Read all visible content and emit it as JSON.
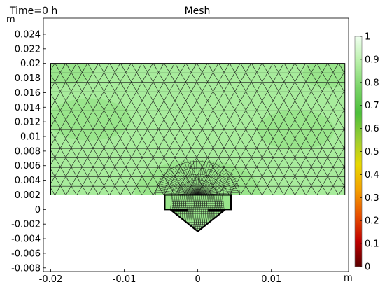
{
  "plot": {
    "time_label": "Time=0 h",
    "title": "Mesh",
    "y_unit": "m",
    "x_unit": "m"
  },
  "colors": {
    "mesh_fill": "#a8ec9c",
    "mesh_fill_dark": "#8de07e",
    "mesh_line": "#1a1a1a",
    "frame": "#000000"
  },
  "chart_data": {
    "type": "mesh",
    "x_ticks": [
      {
        "value": -0.02,
        "label": "-0.02"
      },
      {
        "value": -0.01,
        "label": "-0.01"
      },
      {
        "value": 0,
        "label": "0"
      },
      {
        "value": 0.01,
        "label": "0.01"
      }
    ],
    "y_ticks": [
      {
        "value": 0.024,
        "label": "0.024"
      },
      {
        "value": 0.022,
        "label": "0.022"
      },
      {
        "value": 0.02,
        "label": "0.02"
      },
      {
        "value": 0.018,
        "label": "0.018"
      },
      {
        "value": 0.016,
        "label": "0.016"
      },
      {
        "value": 0.014,
        "label": "0.014"
      },
      {
        "value": 0.012,
        "label": "0.012"
      },
      {
        "value": 0.01,
        "label": "0.01"
      },
      {
        "value": 0.008,
        "label": "0.008"
      },
      {
        "value": 0.006,
        "label": "0.006"
      },
      {
        "value": 0.004,
        "label": "0.004"
      },
      {
        "value": 0.002,
        "label": "0.002"
      },
      {
        "value": 0,
        "label": "0"
      },
      {
        "value": -0.002,
        "label": "-0.002"
      },
      {
        "value": -0.004,
        "label": "-0.004"
      },
      {
        "value": -0.006,
        "label": "-0.006"
      },
      {
        "value": -0.008,
        "label": "-0.008"
      }
    ],
    "xlim": [
      -0.021,
      0.0205
    ],
    "ylim": [
      -0.0085,
      0.0262
    ],
    "geometry": {
      "rect_x": [
        -0.02,
        0.02
      ],
      "rect_y": [
        0.002,
        0.02
      ],
      "slot_x": [
        -0.0045,
        0.0045
      ],
      "slot_y": [
        0.0,
        0.002
      ],
      "stem_x": [
        -0.0015,
        0.0015
      ],
      "stem_y": [
        -0.0002,
        0.002
      ],
      "head_x": [
        -0.0035,
        0.0035
      ],
      "head_top_y": -0.0002,
      "tip_y": -0.003
    },
    "colorbar": {
      "min": 0,
      "max": 1,
      "ticks": [
        {
          "value": 1,
          "label": "1"
        },
        {
          "value": 0.9,
          "label": "0.9"
        },
        {
          "value": 0.8,
          "label": "0.8"
        },
        {
          "value": 0.7,
          "label": "0.7"
        },
        {
          "value": 0.6,
          "label": "0.6"
        },
        {
          "value": 0.5,
          "label": "0.5"
        },
        {
          "value": 0.4,
          "label": "0.4"
        },
        {
          "value": 0.3,
          "label": "0.3"
        },
        {
          "value": 0.2,
          "label": "0.2"
        },
        {
          "value": 0.1,
          "label": "0.1"
        },
        {
          "value": 0,
          "label": "0"
        }
      ],
      "gradient": [
        "#f0fff0",
        "#b8f0a8",
        "#7ad468",
        "#4cbf3a",
        "#9acd32",
        "#e8d800",
        "#f4a000",
        "#e85000",
        "#c00000",
        "#5a0000"
      ]
    }
  }
}
